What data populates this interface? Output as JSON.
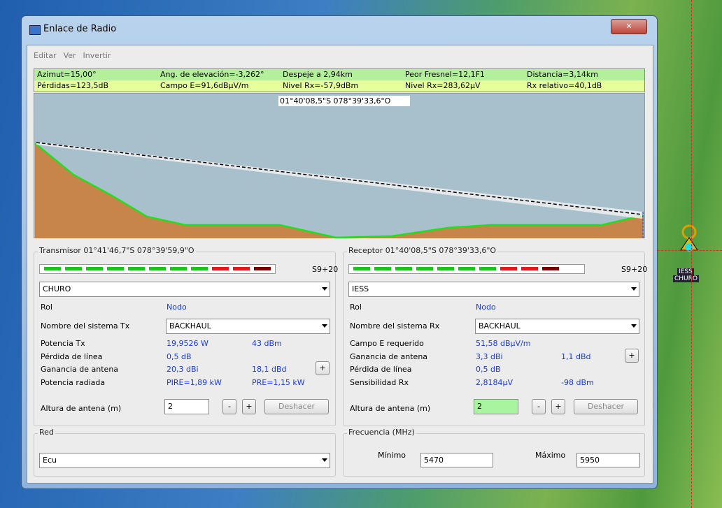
{
  "window": {
    "title": "Enlace de Radio"
  },
  "menu": [
    "Editar",
    "Ver",
    "Invertir"
  ],
  "info": [
    [
      "Azimut=15,00°",
      "Ang. de elevación=-3,262°",
      "Despeje a 2,94km",
      "Peor Fresnel=12,1F1",
      "Distancia=3,14km"
    ],
    [
      "Pérdidas=123,5dB",
      "Campo E=91,6dBµV/m",
      "Nivel Rx=-57,9dBm",
      "Nivel Rx=283,62µV",
      "Rx relativo=40,1dB"
    ]
  ],
  "profile_label": "01°40'08,5\"S 078°39'33,6\"O",
  "transmitter": {
    "legend": "Transmisor 01°41'46,7\"S 078°39'59,9\"O",
    "signal": "S9+20",
    "station": "CHURO",
    "role_label": "Rol",
    "role": "Nodo",
    "system_label": "Nombre del sistema Tx",
    "system": "BACKHAUL",
    "rows": [
      {
        "label": "Potencia Tx",
        "values": [
          "19,9526 W",
          "43 dBm"
        ]
      },
      {
        "label": "Pérdida de línea",
        "values": [
          "0,5 dB"
        ]
      },
      {
        "label": "Ganancia de antena",
        "values": [
          "20,3 dBi",
          "18,1 dBd"
        ],
        "button": "+"
      },
      {
        "label": "Potencia radiada",
        "values": [
          "PIRE=1,89 kW",
          "PRE=1,15 kW"
        ]
      }
    ],
    "height_label": "Altura de antena (m)",
    "height": 2,
    "buttons": [
      "-",
      "+",
      "Deshacer"
    ]
  },
  "receiver": {
    "legend": "Receptor 01°40'08,5\"S 078°39'33,6\"O",
    "signal": "S9+20",
    "station": "IESS",
    "role_label": "Rol",
    "role": "Nodo",
    "system_label": "Nombre del sistema Rx",
    "system": "BACKHAUL",
    "rows": [
      {
        "label": "Campo E requerido",
        "values": [
          "51,58 dBµV/m"
        ]
      },
      {
        "label": "Ganancia de antena",
        "values": [
          "3,3 dBi",
          "1,1 dBd"
        ],
        "button": "+"
      },
      {
        "label": "Pérdida de línea",
        "values": [
          "0,5 dB"
        ]
      },
      {
        "label": "Sensibilidad Rx",
        "values": [
          "2,8184µV",
          "-98 dBm"
        ]
      }
    ],
    "height_label": "Altura de antena (m)",
    "height": 2,
    "buttons": [
      "-",
      "+",
      "Deshacer"
    ]
  },
  "network": {
    "legend": "Red",
    "value": "Ecu"
  },
  "frequency": {
    "legend": "Frecuencia (MHz)",
    "min_label": "Mínimo",
    "min": 5470,
    "max_label": "Máximo",
    "max": 5950
  },
  "map_labels": [
    "IESS",
    "CHURO"
  ]
}
